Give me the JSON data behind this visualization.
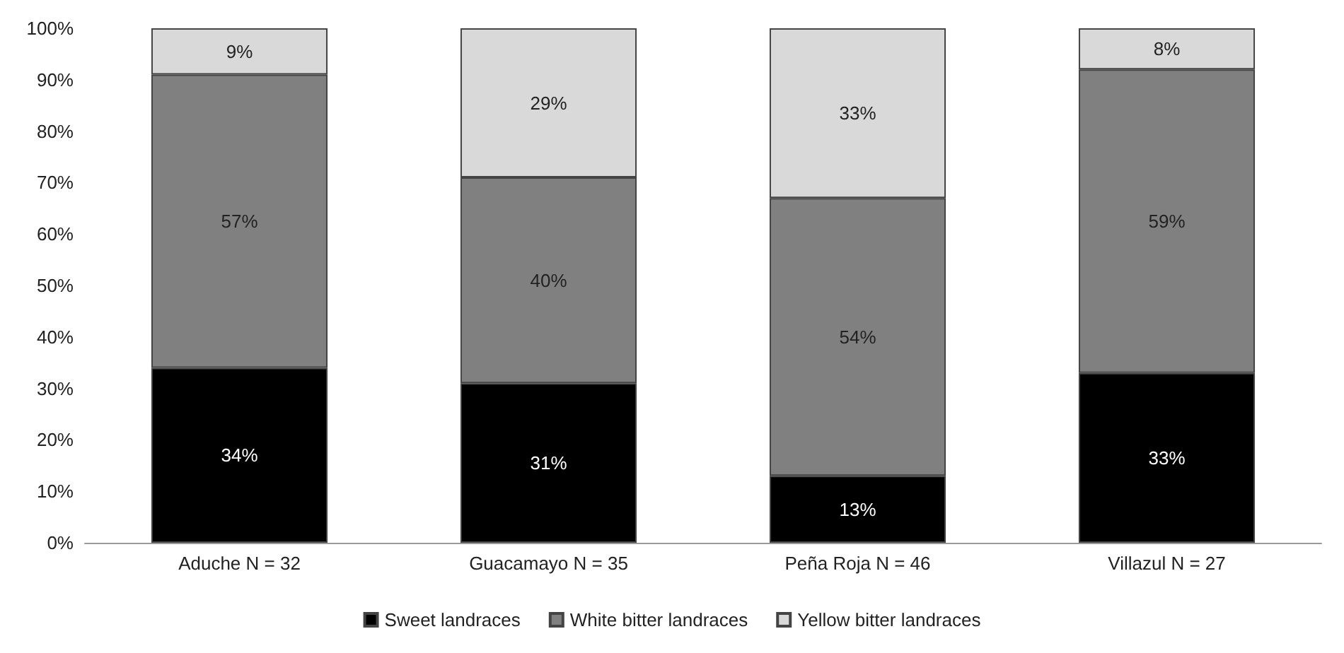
{
  "chart_data": {
    "type": "bar",
    "stacked": true,
    "categories": [
      "Aduche N = 32",
      "Guacamayo N = 35",
      "Peña Roja N = 46",
      "Villazul N = 27"
    ],
    "series": [
      {
        "name": "Sweet landraces",
        "color": "#000000",
        "values": [
          34,
          31,
          13,
          33
        ],
        "value_labels": [
          "34%",
          "31%",
          "13%",
          "33%"
        ]
      },
      {
        "name": "White bitter landraces",
        "color": "#808080",
        "values": [
          57,
          40,
          54,
          59
        ],
        "value_labels": [
          "57%",
          "40%",
          "54%",
          "59%"
        ]
      },
      {
        "name": "Yellow bitter landraces",
        "color": "#d9d9d9",
        "values": [
          9,
          29,
          33,
          8
        ],
        "value_labels": [
          "9%",
          "29%",
          "33%",
          "8%"
        ]
      }
    ],
    "ylim": [
      0,
      100
    ],
    "yticks": [
      {
        "value": 0,
        "label": "0%"
      },
      {
        "value": 10,
        "label": "10%"
      },
      {
        "value": 20,
        "label": "20%"
      },
      {
        "value": 30,
        "label": "30%"
      },
      {
        "value": 40,
        "label": "40%"
      },
      {
        "value": 50,
        "label": "50%"
      },
      {
        "value": 60,
        "label": "60%"
      },
      {
        "value": 70,
        "label": "70%"
      },
      {
        "value": 80,
        "label": "80%"
      },
      {
        "value": 90,
        "label": "90%"
      },
      {
        "value": 100,
        "label": "100%"
      }
    ],
    "grid": false,
    "legend": "bottom"
  }
}
